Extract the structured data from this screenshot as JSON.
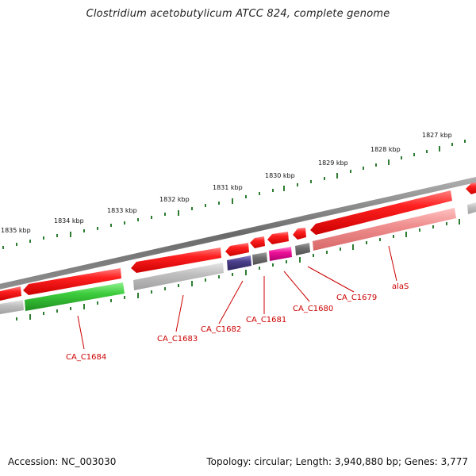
{
  "title": "Clostridium acetobutylicum ATCC 824, complete genome",
  "footer": {
    "accession": "Accession: NC_003030",
    "topology": "Topology: circular; Length: 3,940,880 bp; Genes: 3,777"
  },
  "colors": {
    "backbone": "#7a7a7a",
    "gene_red": "#ee1111",
    "gene_light_red": "#ee8888",
    "gene_green": "#33cc33",
    "gene_gray": "#bbbbbb",
    "gene_dark_gray": "#707070",
    "gene_navy": "#4a3f8a",
    "gene_magenta": "#ee1199",
    "tick_green": "#2e7d32",
    "label_red": "#cc0000"
  },
  "scale": {
    "tick_labels": [
      "1835 kbp",
      "1834 kbp",
      "1833 kbp",
      "1832 kbp",
      "1831 kbp",
      "1830 kbp",
      "1829 kbp",
      "1828 kbp",
      "1827 kbp"
    ]
  },
  "gene_labels": [
    "CA_C1684",
    "CA_C1683",
    "CA_C1682",
    "CA_C1681",
    "CA_C1680",
    "CA_C1679",
    "alaS"
  ]
}
